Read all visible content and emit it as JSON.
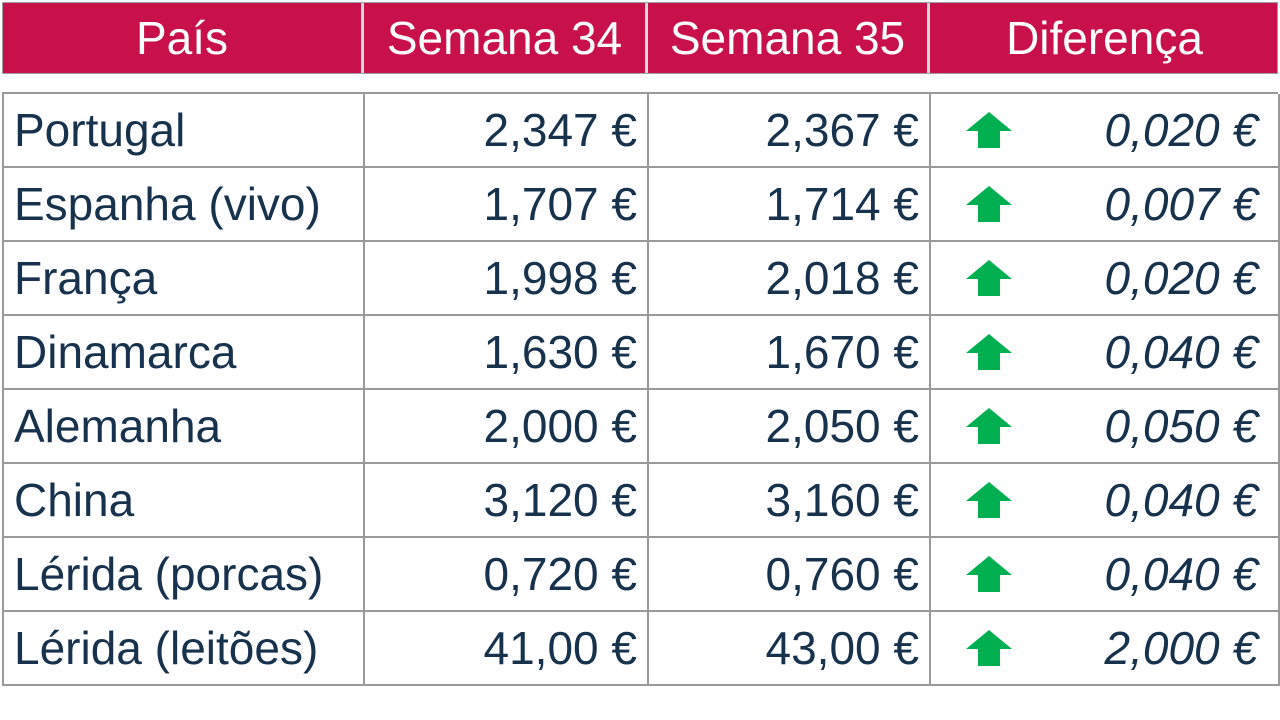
{
  "header": {
    "country": "País",
    "week34": "Semana 34",
    "week35": "Semana 35",
    "difference": "Diferença"
  },
  "colors": {
    "header_bg": "#c8104a",
    "header_text": "#ffffff",
    "body_text": "#17324d",
    "arrow_up": "#00b050"
  },
  "rows": [
    {
      "country": "Portugal",
      "week34": "2,347 €",
      "week35": "2,367 €",
      "trend": "up-arrow-icon",
      "difference": "0,020 €"
    },
    {
      "country": "Espanha (vivo)",
      "week34": "1,707 €",
      "week35": "1,714 €",
      "trend": "up-arrow-icon",
      "difference": "0,007 €"
    },
    {
      "country": "França",
      "week34": "1,998 €",
      "week35": "2,018 €",
      "trend": "up-arrow-icon",
      "difference": "0,020 €"
    },
    {
      "country": "Dinamarca",
      "week34": "1,630 €",
      "week35": "1,670 €",
      "trend": "up-arrow-icon",
      "difference": "0,040 €"
    },
    {
      "country": "Alemanha",
      "week34": "2,000 €",
      "week35": "2,050 €",
      "trend": "up-arrow-icon",
      "difference": "0,050 €"
    },
    {
      "country": "China",
      "week34": "3,120 €",
      "week35": "3,160 €",
      "trend": "up-arrow-icon",
      "difference": "0,040 €"
    },
    {
      "country": "Lérida (porcas)",
      "week34": "0,720 €",
      "week35": "0,760 €",
      "trend": "up-arrow-icon",
      "difference": "0,040 €"
    },
    {
      "country": "Lérida (leitões)",
      "week34": "41,00 €",
      "week35": "43,00 €",
      "trend": "up-arrow-icon",
      "difference": "2,000 €"
    }
  ]
}
